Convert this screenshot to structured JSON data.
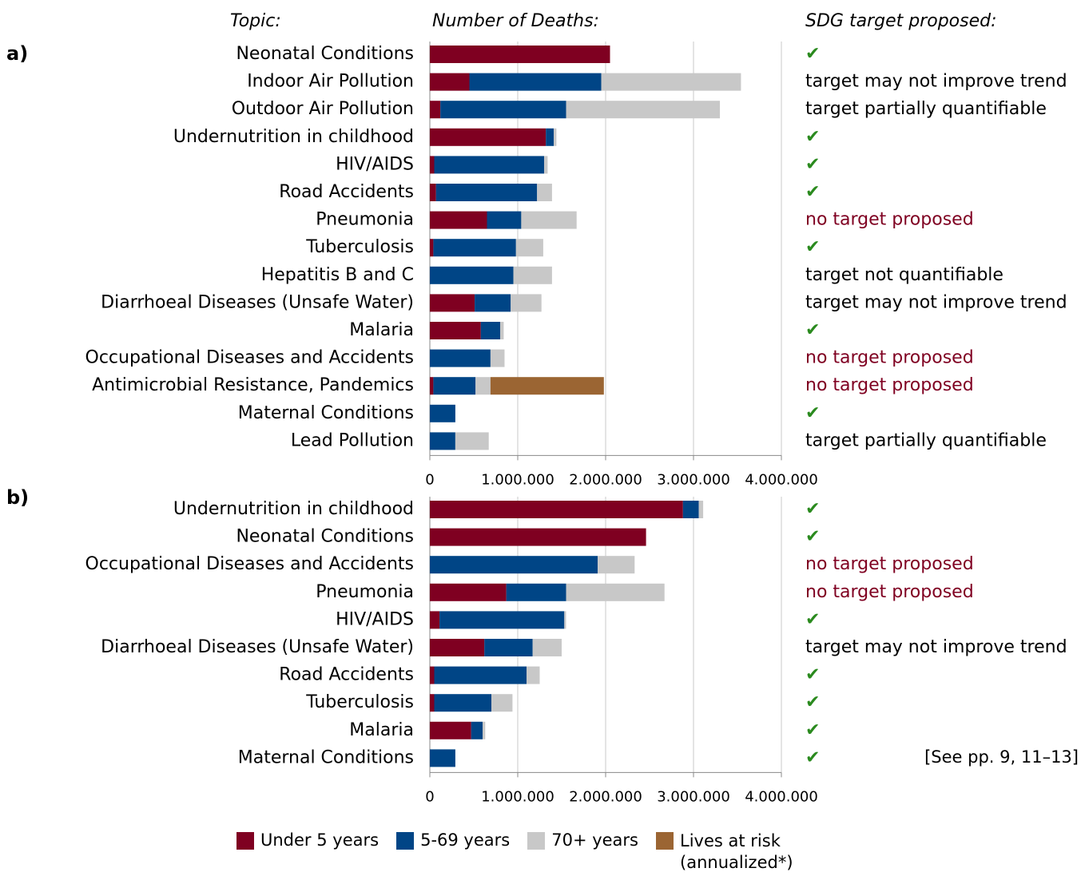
{
  "headers": {
    "topic": "Topic:",
    "deaths": "Number of Deaths:",
    "target": "SDG target proposed:"
  },
  "footnote": "[See pp. 9, 11–13]",
  "chart_data": [
    {
      "type": "bar",
      "orientation": "horizontal",
      "stacked": true,
      "label": "a)",
      "categories": [
        "Neonatal Conditions",
        "Indoor Air Pollution",
        "Outdoor Air Pollution",
        "Undernutrition in childhood",
        "HIV/AIDS",
        "Road Accidents",
        "Pneumonia",
        "Tuberculosis",
        "Hepatitis B and C",
        "Diarrhoeal Diseases (Unsafe Water)",
        "Malaria",
        "Occupational Diseases and Accidents",
        "Antimicrobial Resistance, Pandemics",
        "Maternal Conditions",
        "Lead Pollution"
      ],
      "series": [
        {
          "name": "Under 5 years",
          "color": "#7f0021",
          "values": [
            2050000,
            450000,
            120000,
            1320000,
            50000,
            70000,
            650000,
            40000,
            0,
            510000,
            580000,
            0,
            40000,
            0,
            0
          ]
        },
        {
          "name": "5-69 years",
          "color": "#004586",
          "values": [
            0,
            1500000,
            1430000,
            90000,
            1250000,
            1150000,
            390000,
            940000,
            950000,
            410000,
            220000,
            690000,
            480000,
            290000,
            290000
          ]
        },
        {
          "name": "70+ years",
          "color": "#c8c8c8",
          "values": [
            0,
            1590000,
            1750000,
            30000,
            40000,
            170000,
            630000,
            310000,
            440000,
            350000,
            40000,
            160000,
            170000,
            0,
            380000
          ]
        },
        {
          "name": "Lives at risk (annualized*)",
          "color": "#9b6533",
          "values": [
            0,
            0,
            0,
            0,
            0,
            0,
            0,
            0,
            0,
            0,
            0,
            0,
            1290000,
            0,
            0
          ]
        }
      ],
      "targets": [
        {
          "text": "✔",
          "color": "#2a8a1e"
        },
        {
          "text": "target may not improve trend",
          "color": "#000000"
        },
        {
          "text": "target partially quantifiable",
          "color": "#000000"
        },
        {
          "text": "✔",
          "color": "#2a8a1e"
        },
        {
          "text": "✔",
          "color": "#2a8a1e"
        },
        {
          "text": "✔",
          "color": "#2a8a1e"
        },
        {
          "text": "no target proposed",
          "color": "#7f0021"
        },
        {
          "text": "✔",
          "color": "#2a8a1e"
        },
        {
          "text": "target not quantifiable",
          "color": "#000000"
        },
        {
          "text": "target may not improve trend",
          "color": "#000000"
        },
        {
          "text": "✔",
          "color": "#2a8a1e"
        },
        {
          "text": "no target proposed",
          "color": "#7f0021"
        },
        {
          "text": "no target proposed",
          "color": "#7f0021"
        },
        {
          "text": "✔",
          "color": "#2a8a1e"
        },
        {
          "text": "target partially quantifiable",
          "color": "#000000"
        }
      ],
      "xlim": [
        0,
        4000000
      ],
      "xticks": [
        0,
        {
          "value": 1000000,
          "label": "1.000.000"
        },
        {
          "value": 2000000,
          "label": "2.000.000"
        },
        {
          "value": 3000000,
          "label": "3.000.000"
        },
        {
          "value": 4000000,
          "label": "4.000.000"
        }
      ],
      "grid": true
    },
    {
      "type": "bar",
      "orientation": "horizontal",
      "stacked": true,
      "label": "b)",
      "categories": [
        "Undernutrition in childhood",
        "Neonatal Conditions",
        "Occupational Diseases and Accidents",
        "Pneumonia",
        "HIV/AIDS",
        "Diarrhoeal Diseases (Unsafe Water)",
        "Road Accidents",
        "Tuberculosis",
        "Malaria",
        "Maternal Conditions"
      ],
      "series": [
        {
          "name": "Under 5 years",
          "color": "#7f0021",
          "values": [
            2880000,
            2460000,
            0,
            870000,
            110000,
            620000,
            50000,
            50000,
            470000,
            0
          ]
        },
        {
          "name": "5-69 years",
          "color": "#004586",
          "values": [
            180000,
            0,
            1910000,
            680000,
            1420000,
            550000,
            1050000,
            650000,
            130000,
            290000
          ]
        },
        {
          "name": "70+ years",
          "color": "#c8c8c8",
          "values": [
            50000,
            0,
            420000,
            1120000,
            20000,
            330000,
            150000,
            240000,
            30000,
            0
          ]
        }
      ],
      "targets": [
        {
          "text": "✔",
          "color": "#2a8a1e"
        },
        {
          "text": "✔",
          "color": "#2a8a1e"
        },
        {
          "text": "no target proposed",
          "color": "#7f0021"
        },
        {
          "text": "no target proposed",
          "color": "#7f0021"
        },
        {
          "text": "✔",
          "color": "#2a8a1e"
        },
        {
          "text": "target may not improve trend",
          "color": "#000000"
        },
        {
          "text": "✔",
          "color": "#2a8a1e"
        },
        {
          "text": "✔",
          "color": "#2a8a1e"
        },
        {
          "text": "✔",
          "color": "#2a8a1e"
        },
        {
          "text": "✔",
          "color": "#2a8a1e"
        }
      ],
      "xlim": [
        0,
        4000000
      ],
      "xticks": [
        0,
        {
          "value": 1000000,
          "label": "1.000.000"
        },
        {
          "value": 2000000,
          "label": "2.000.000"
        },
        {
          "value": 3000000,
          "label": "3.000.000"
        },
        {
          "value": 4000000,
          "label": "4.000.000"
        }
      ],
      "grid": true
    }
  ]
}
